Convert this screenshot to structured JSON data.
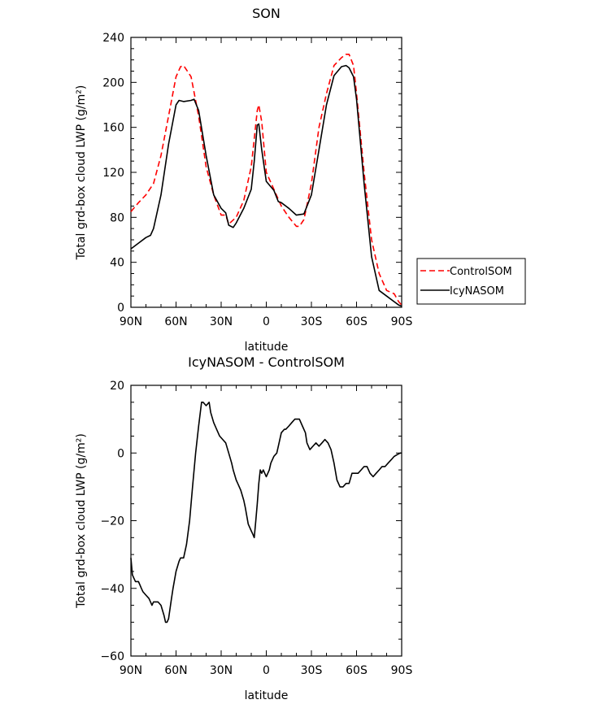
{
  "chart_data": [
    {
      "type": "line",
      "title": "SON",
      "xlabel": "latitude",
      "ylabel": "Total grd-box cloud LWP (g/m²)",
      "xticks": [
        "90N",
        "60N",
        "30N",
        "0",
        "30S",
        "60S",
        "90S"
      ],
      "ylim": [
        0,
        240
      ],
      "yticks": [
        0,
        40,
        80,
        120,
        160,
        200,
        240
      ],
      "legend": "right",
      "series": [
        {
          "name": "ControlSOM",
          "style": "dashed",
          "color": "#ff0000",
          "x": [
            90,
            85,
            80,
            75,
            70,
            65,
            60,
            57,
            55,
            50,
            45,
            40,
            35,
            30,
            27,
            25,
            20,
            15,
            10,
            8,
            6,
            5,
            3,
            0,
            -5,
            -10,
            -15,
            -20,
            -22,
            -25,
            -30,
            -35,
            -40,
            -45,
            -50,
            -53,
            -55,
            -58,
            -60,
            -65,
            -70,
            -75,
            -80,
            -85,
            -88,
            -90
          ],
          "y": [
            85,
            93,
            100,
            110,
            135,
            170,
            205,
            214,
            215,
            205,
            170,
            125,
            100,
            82,
            82,
            74,
            80,
            95,
            125,
            150,
            175,
            180,
            165,
            120,
            105,
            90,
            80,
            72,
            72,
            78,
            110,
            160,
            190,
            215,
            222,
            225,
            225,
            215,
            190,
            120,
            60,
            30,
            15,
            12,
            5,
            2
          ]
        },
        {
          "name": "IcyNASOM",
          "style": "solid",
          "color": "#000000",
          "x": [
            90,
            85,
            80,
            77,
            75,
            70,
            65,
            60,
            58,
            55,
            50,
            48,
            45,
            40,
            35,
            30,
            27,
            25,
            22,
            20,
            15,
            10,
            8,
            6,
            5,
            3,
            0,
            -5,
            -8,
            -10,
            -15,
            -20,
            -25,
            -30,
            -35,
            -40,
            -45,
            -50,
            -53,
            -55,
            -58,
            -60,
            -65,
            -70,
            -75,
            -80,
            -85,
            -88,
            -90
          ],
          "y": [
            52,
            57,
            62,
            64,
            70,
            100,
            145,
            180,
            184,
            183,
            184,
            185,
            175,
            135,
            100,
            88,
            84,
            73,
            71,
            75,
            88,
            105,
            130,
            162,
            163,
            140,
            112,
            104,
            94,
            93,
            88,
            82,
            83,
            100,
            140,
            180,
            206,
            214,
            215,
            213,
            205,
            185,
            110,
            45,
            15,
            10,
            5,
            2,
            1
          ]
        }
      ]
    },
    {
      "type": "line",
      "title": "IcyNASOM - ControlSOM",
      "xlabel": "latitude",
      "ylabel": "Total grd-box cloud LWP (g/m²)",
      "xticks": [
        "90N",
        "60N",
        "30N",
        "0",
        "30S",
        "60S",
        "90S"
      ],
      "ylim": [
        -60,
        20
      ],
      "yticks": [
        -60,
        -40,
        -20,
        0,
        20
      ],
      "series": [
        {
          "style": "solid",
          "color": "#000000",
          "x": [
            90,
            89,
            88,
            87,
            86,
            85,
            84,
            83,
            82,
            80,
            78,
            77,
            76,
            75,
            73,
            72,
            70,
            68,
            67,
            66,
            65,
            63,
            62,
            60,
            58,
            57,
            55,
            53,
            51,
            49,
            47,
            45,
            43,
            42,
            40,
            38,
            37,
            35,
            33,
            31,
            29,
            27,
            25,
            23,
            22,
            20,
            19,
            17,
            15,
            14,
            12,
            10,
            9,
            8,
            7,
            6,
            5,
            4,
            3,
            2,
            0,
            -2,
            -3,
            -5,
            -7,
            -8,
            -10,
            -12,
            -13,
            -15,
            -17,
            -19,
            -20,
            -22,
            -24,
            -26,
            -27,
            -29,
            -31,
            -33,
            -35,
            -37,
            -39,
            -41,
            -43,
            -45,
            -47,
            -49,
            -51,
            -53,
            -55,
            -57,
            -59,
            -61,
            -63,
            -65,
            -67,
            -69,
            -71,
            -73,
            -75,
            -77,
            -79,
            -81,
            -83,
            -85,
            -87,
            -89,
            -90
          ],
          "y": [
            -31,
            -36,
            -37,
            -38,
            -38,
            -38,
            -39,
            -40,
            -41,
            -42,
            -43,
            -44,
            -45,
            -44,
            -44,
            -44,
            -45,
            -48,
            -50,
            -50,
            -49,
            -43,
            -40,
            -35,
            -32,
            -31,
            -31,
            -27,
            -20,
            -10,
            0,
            8,
            15,
            15,
            14,
            15,
            12,
            9,
            7,
            5,
            4,
            3,
            0,
            -3,
            -5,
            -8,
            -9,
            -11,
            -14,
            -16,
            -21,
            -23,
            -24,
            -25,
            -20,
            -15,
            -9,
            -5,
            -6,
            -5,
            -7,
            -5,
            -3,
            -1,
            0,
            2,
            6,
            7,
            7,
            8,
            9,
            10,
            10,
            10,
            8,
            6,
            3,
            1,
            2,
            3,
            2,
            3,
            4,
            3,
            1,
            -3,
            -8,
            -10,
            -10,
            -9,
            -9,
            -6,
            -6,
            -6,
            -5,
            -4,
            -4,
            -6,
            -7,
            -6,
            -5,
            -4,
            -4,
            -3,
            -2,
            -1,
            -0.5,
            0,
            0
          ]
        }
      ]
    }
  ]
}
